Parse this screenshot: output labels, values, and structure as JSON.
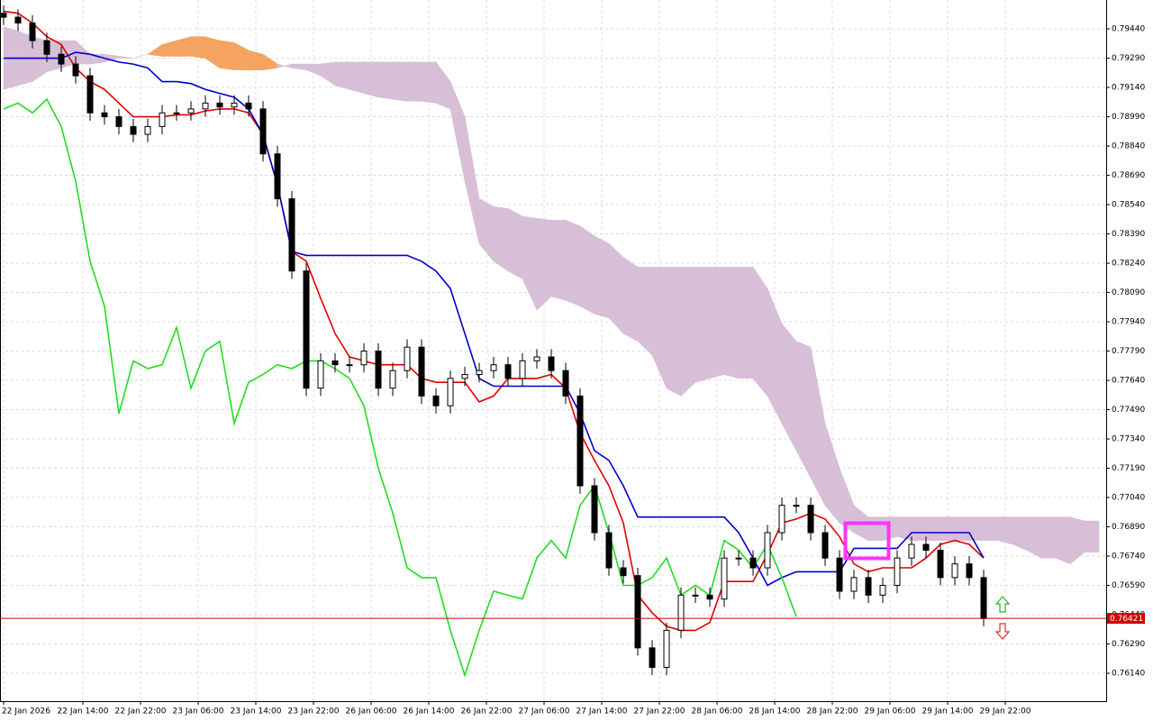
{
  "chart_data": {
    "type": "candlestick",
    "x": [
      0,
      2,
      4,
      6,
      8,
      10,
      12,
      14,
      16,
      18,
      20,
      22,
      24,
      26,
      28,
      30,
      32,
      34,
      36,
      38,
      40,
      42,
      44,
      46,
      48,
      50,
      52,
      54,
      56,
      58,
      60,
      62,
      64,
      66,
      68,
      70,
      72,
      74,
      76,
      78,
      80,
      82,
      84,
      86,
      88,
      90,
      92,
      94,
      96,
      98,
      100,
      102,
      104,
      106,
      108,
      110,
      112,
      114,
      116,
      118,
      120,
      122,
      124,
      126,
      128,
      130,
      132,
      134,
      136,
      138,
      140,
      142,
      144,
      146,
      148,
      150,
      152
    ],
    "xlim": [
      -0.5,
      153
    ],
    "xticks": [
      {
        "value": 0,
        "label": "22 Jan 2026"
      },
      {
        "value": 11,
        "label": "22 Jan 14:00"
      },
      {
        "value": 19,
        "label": "22 Jan 22:00"
      },
      {
        "value": 27,
        "label": "23 Jan 06:00"
      },
      {
        "value": 35,
        "label": "23 Jan 14:00"
      },
      {
        "value": 43,
        "label": "23 Jan 22:00"
      },
      {
        "value": 51,
        "label": "26 Jan 06:00"
      },
      {
        "value": 59,
        "label": "26 Jan 14:00"
      },
      {
        "value": 67,
        "label": "26 Jan 22:00"
      },
      {
        "value": 75,
        "label": "27 Jan 06:00"
      },
      {
        "value": 83,
        "label": "27 Jan 14:00"
      },
      {
        "value": 91,
        "label": "27 Jan 22:00"
      },
      {
        "value": 99,
        "label": "28 Jan 06:00"
      },
      {
        "value": 107,
        "label": "28 Jan 14:00"
      },
      {
        "value": 115,
        "label": "28 Jan 22:00"
      },
      {
        "value": 123,
        "label": "29 Jan 06:00"
      },
      {
        "value": 131,
        "label": "29 Jan 14:00"
      },
      {
        "value": 139,
        "label": "29 Jan 22:00"
      }
    ],
    "ylim": [
      0.75997,
      0.79588
    ],
    "yticks": [
      {
        "value": 0.7944,
        "label": "0.79440"
      },
      {
        "value": 0.7929,
        "label": "0.79290"
      },
      {
        "value": 0.7914,
        "label": "0.79140"
      },
      {
        "value": 0.7899,
        "label": "0.78990"
      },
      {
        "value": 0.7884,
        "label": "0.78840"
      },
      {
        "value": 0.7869,
        "label": "0.78690"
      },
      {
        "value": 0.7854,
        "label": "0.78540"
      },
      {
        "value": 0.7839,
        "label": "0.78390"
      },
      {
        "value": 0.7824,
        "label": "0.78240"
      },
      {
        "value": 0.7809,
        "label": "0.78090"
      },
      {
        "value": 0.7794,
        "label": "0.77940"
      },
      {
        "value": 0.7779,
        "label": "0.77790"
      },
      {
        "value": 0.7764,
        "label": "0.77640"
      },
      {
        "value": 0.7749,
        "label": "0.77490"
      },
      {
        "value": 0.7734,
        "label": "0.77340"
      },
      {
        "value": 0.7719,
        "label": "0.77190"
      },
      {
        "value": 0.7704,
        "label": "0.77040"
      },
      {
        "value": 0.7689,
        "label": "0.76890"
      },
      {
        "value": 0.7674,
        "label": "0.76740"
      },
      {
        "value": 0.7659,
        "label": "0.76590"
      },
      {
        "value": 0.7644,
        "label": "0.76440"
      },
      {
        "value": 0.7629,
        "label": "0.76290"
      },
      {
        "value": 0.7614,
        "label": "0.76140"
      }
    ],
    "grid": true,
    "candles": {
      "up_color": "#ffffff",
      "down_color": "#000000",
      "open": [
        0.7952,
        0.795,
        0.7947,
        0.7938,
        0.7931,
        0.7926,
        0.792,
        0.7901,
        0.7899,
        0.7894,
        0.789,
        0.7894,
        0.7901,
        0.7901,
        0.7903,
        0.7906,
        0.7904,
        0.7906,
        0.7903,
        0.788,
        0.7857,
        0.782,
        0.776,
        0.7774,
        0.7772,
        0.7772,
        0.7779,
        0.776,
        0.7769,
        0.7781,
        0.7756,
        0.7751,
        0.7765,
        0.7767,
        0.7769,
        0.7772,
        0.7765,
        0.7774,
        0.7776,
        0.7769,
        0.7756,
        0.771,
        0.7686,
        0.7668,
        0.7664,
        0.7627,
        0.7617,
        0.7636,
        0.7654,
        0.7654,
        0.7652,
        0.7673,
        0.7673,
        0.7668,
        0.7686,
        0.77,
        0.77,
        0.7686,
        0.7673,
        0.7656,
        0.7663,
        0.7654,
        0.7659,
        0.7673,
        0.768,
        0.7677,
        0.7663,
        0.767,
        0.7663,
        null,
        null,
        null,
        null,
        null,
        null,
        null,
        null
      ],
      "high": [
        0.7956,
        0.7954,
        0.7951,
        0.7942,
        0.7935,
        0.793,
        0.7924,
        0.7905,
        0.7903,
        0.7898,
        0.7898,
        0.7905,
        0.7905,
        0.7907,
        0.791,
        0.791,
        0.791,
        0.791,
        0.7907,
        0.7884,
        0.7861,
        0.7824,
        0.7778,
        0.7778,
        0.7776,
        0.7783,
        0.7783,
        0.7773,
        0.7785,
        0.7785,
        0.776,
        0.7769,
        0.7771,
        0.7773,
        0.7776,
        0.7776,
        0.7778,
        0.778,
        0.778,
        0.7773,
        0.776,
        0.7714,
        0.769,
        0.7672,
        0.7668,
        0.7631,
        0.764,
        0.7658,
        0.7658,
        0.7658,
        0.7677,
        0.7677,
        0.7677,
        0.769,
        0.7704,
        0.7704,
        0.7704,
        0.769,
        0.7677,
        0.7667,
        0.7667,
        0.7663,
        0.7677,
        0.7684,
        0.7684,
        0.7681,
        0.7674,
        0.7674,
        0.7667,
        null,
        null,
        null,
        null,
        null,
        null,
        null,
        null
      ],
      "low": [
        0.7946,
        0.7943,
        0.7934,
        0.7927,
        0.7922,
        0.7916,
        0.7897,
        0.7895,
        0.789,
        0.7886,
        0.7886,
        0.789,
        0.7897,
        0.7897,
        0.7899,
        0.79,
        0.79,
        0.7899,
        0.7876,
        0.7853,
        0.7816,
        0.7756,
        0.7756,
        0.7768,
        0.7768,
        0.7768,
        0.7756,
        0.7756,
        0.7765,
        0.7752,
        0.7747,
        0.7747,
        0.7761,
        0.7763,
        0.7765,
        0.7761,
        0.7761,
        0.777,
        0.7765,
        0.7752,
        0.7706,
        0.7682,
        0.7664,
        0.766,
        0.7623,
        0.7613,
        0.7613,
        0.7632,
        0.765,
        0.7648,
        0.7648,
        0.7669,
        0.7664,
        0.7664,
        0.7682,
        0.7696,
        0.7682,
        0.7669,
        0.7652,
        0.7652,
        0.765,
        0.765,
        0.7655,
        0.7669,
        0.7673,
        0.7659,
        0.7659,
        0.7659,
        0.7638,
        null,
        null,
        null,
        null,
        null,
        null,
        null,
        null
      ],
      "close": [
        0.795,
        0.7947,
        0.7938,
        0.7931,
        0.7926,
        0.792,
        0.7901,
        0.7899,
        0.7894,
        0.789,
        0.7894,
        0.7901,
        0.7901,
        0.7903,
        0.7906,
        0.7904,
        0.7906,
        0.7903,
        0.788,
        0.7857,
        0.782,
        0.776,
        0.7774,
        0.7772,
        0.7772,
        0.7779,
        0.776,
        0.7769,
        0.7781,
        0.7756,
        0.7751,
        0.7765,
        0.7767,
        0.7769,
        0.7772,
        0.7765,
        0.7774,
        0.7776,
        0.7769,
        0.7756,
        0.771,
        0.7686,
        0.7668,
        0.7664,
        0.7627,
        0.7617,
        0.7636,
        0.7654,
        0.7654,
        0.7652,
        0.7673,
        0.7673,
        0.7668,
        0.7686,
        0.77,
        0.77,
        0.7686,
        0.7673,
        0.7656,
        0.7663,
        0.7654,
        0.7659,
        0.7673,
        0.768,
        0.7677,
        0.7663,
        0.767,
        0.7663,
        0.7642,
        null,
        null,
        null,
        null,
        null,
        null,
        null,
        null
      ]
    },
    "lines": [
      {
        "color": "#e00000",
        "values": [
          0.7953,
          0.7952,
          0.7947,
          0.794,
          0.7936,
          0.7924,
          0.7917,
          0.7913,
          0.7906,
          0.7899,
          0.7899,
          0.7899,
          0.79,
          0.79,
          0.7902,
          0.7903,
          0.7903,
          0.7901,
          0.789,
          0.7864,
          0.783,
          0.7825,
          0.7806,
          0.7788,
          0.7776,
          0.7774,
          0.7772,
          0.7772,
          0.7772,
          0.7765,
          0.7763,
          0.7763,
          0.7763,
          0.7753,
          0.7756,
          0.7765,
          0.7765,
          0.7765,
          0.7767,
          0.776,
          0.7737,
          0.7723,
          0.771,
          0.7691,
          0.7654,
          0.7645,
          0.7638,
          0.7636,
          0.7636,
          0.764,
          0.7661,
          0.7661,
          0.7661,
          0.7675,
          0.7691,
          0.7693,
          0.7696,
          0.7693,
          0.7684,
          0.767,
          0.7666,
          0.7668,
          0.7668,
          0.7668,
          0.7673,
          0.768,
          0.7682,
          0.768,
          0.7673,
          null,
          null,
          null,
          null,
          null,
          null,
          null,
          null
        ]
      },
      {
        "color": "#0000cc",
        "values": [
          0.7929,
          0.7929,
          0.7929,
          0.7929,
          0.7929,
          0.7932,
          0.7931,
          0.7929,
          0.7927,
          0.7926,
          0.7924,
          0.7917,
          0.7917,
          0.7916,
          0.7913,
          0.7911,
          0.7909,
          0.7903,
          0.789,
          0.7864,
          0.783,
          0.7828,
          0.7828,
          0.7828,
          0.7828,
          0.7828,
          0.7828,
          0.7828,
          0.7828,
          0.7825,
          0.782,
          0.7811,
          0.7788,
          0.7765,
          0.7761,
          0.7761,
          0.7761,
          0.7761,
          0.7761,
          0.7761,
          0.7747,
          0.7728,
          0.7723,
          0.771,
          0.7694,
          0.7694,
          0.7694,
          0.7694,
          0.7694,
          0.7694,
          0.7694,
          0.7686,
          0.7673,
          0.7659,
          0.7663,
          0.7666,
          0.7666,
          0.7666,
          0.7666,
          0.7678,
          0.7678,
          0.7678,
          0.7678,
          0.7686,
          0.7686,
          0.7686,
          0.7686,
          0.7686,
          0.7673,
          null,
          null,
          null,
          null,
          null,
          null,
          null,
          null
        ]
      },
      {
        "color": "#22dd22",
        "values": [
          0.7903,
          0.7906,
          0.7901,
          0.7908,
          0.7894,
          0.7866,
          0.7825,
          0.7802,
          0.7747,
          0.7774,
          0.777,
          0.7772,
          0.7791,
          0.776,
          0.7779,
          0.7784,
          0.7742,
          0.7763,
          0.7767,
          0.7772,
          0.777,
          0.7774,
          0.7774,
          0.777,
          0.7765,
          0.7751,
          0.7719,
          0.7696,
          0.7668,
          0.7663,
          0.7663,
          0.7636,
          0.7613,
          0.7636,
          0.7656,
          0.7654,
          0.7652,
          0.7673,
          0.7682,
          0.7673,
          0.77,
          0.771,
          0.7686,
          0.7659,
          0.7659,
          0.7663,
          0.7673,
          0.7654,
          0.7659,
          0.7654,
          0.7682,
          0.7677,
          0.7668,
          0.768,
          0.7663,
          0.7643,
          null,
          null,
          null,
          null,
          null,
          null,
          null,
          null,
          null,
          null,
          null,
          null,
          null,
          null,
          null,
          null,
          null,
          null,
          null,
          null,
          null
        ]
      }
    ],
    "cloud": {
      "up_color": "#f4a460",
      "down_color": "#d8bfd8",
      "span_a": [
        0.7913,
        0.7915,
        0.7917,
        0.7922,
        0.7924,
        0.7926,
        0.7926,
        0.7927,
        0.7929,
        0.7929,
        0.7931,
        0.7936,
        0.7938,
        0.794,
        0.794,
        0.7938,
        0.7937,
        0.7933,
        0.7931,
        0.7926,
        0.7924,
        0.7923,
        0.792,
        0.7915,
        0.7913,
        0.7911,
        0.7909,
        0.7908,
        0.7907,
        0.7907,
        0.7906,
        0.7903,
        0.7866,
        0.7834,
        0.7825,
        0.782,
        0.7816,
        0.78,
        0.7807,
        0.7805,
        0.7802,
        0.7798,
        0.7796,
        0.7788,
        0.7784,
        0.7777,
        0.776,
        0.7756,
        0.7763,
        0.7765,
        0.7767,
        0.7765,
        0.7765,
        0.7756,
        0.7742,
        0.7728,
        0.7714,
        0.77,
        0.7691,
        0.7686,
        0.7682,
        0.7682,
        0.7684,
        0.7682,
        0.7682,
        0.7682,
        0.7682,
        0.7682,
        0.7682,
        0.7682,
        0.768,
        0.7677,
        0.7673,
        0.7673,
        0.767,
        0.7676,
        0.7676
      ],
      "span_b": [
        0.7945,
        0.7943,
        0.794,
        0.7938,
        0.7938,
        0.7938,
        0.7931,
        0.7931,
        0.793,
        0.7929,
        0.7931,
        0.793,
        0.793,
        0.793,
        0.7929,
        0.7924,
        0.7923,
        0.7923,
        0.7923,
        0.7924,
        0.7926,
        0.7926,
        0.7926,
        0.7927,
        0.7927,
        0.7927,
        0.7927,
        0.7927,
        0.7927,
        0.7927,
        0.7927,
        0.7917,
        0.7899,
        0.7857,
        0.7853,
        0.7852,
        0.7848,
        0.7847,
        0.7846,
        0.7846,
        0.7843,
        0.7838,
        0.7834,
        0.7827,
        0.7822,
        0.7822,
        0.7822,
        0.7822,
        0.7822,
        0.7822,
        0.7822,
        0.7822,
        0.7822,
        0.7811,
        0.7793,
        0.7784,
        0.7781,
        0.7742,
        0.7719,
        0.77,
        0.7694,
        0.7694,
        0.7694,
        0.7694,
        0.7694,
        0.7694,
        0.7694,
        0.7694,
        0.7694,
        0.7694,
        0.7694,
        0.7694,
        0.7694,
        0.7694,
        0.7694,
        0.7692,
        0.7692
      ]
    },
    "last_price": 0.76421,
    "last_price_color": "#d00000"
  }
}
